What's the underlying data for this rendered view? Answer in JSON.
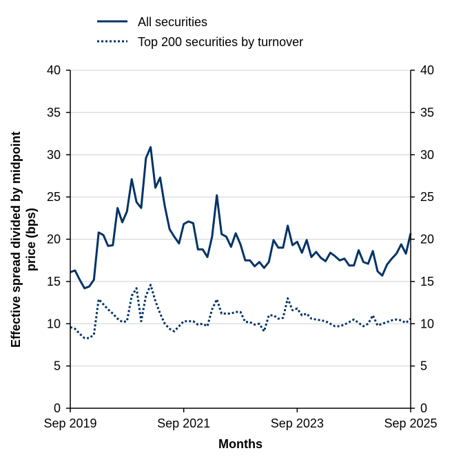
{
  "chart_data": {
    "type": "line",
    "xlabel": "Months",
    "ylabel_line1": "Effective spread divided by midpoint",
    "ylabel_line2": "price (bps)",
    "ylim": [
      0,
      40
    ],
    "yticks": [
      0,
      5,
      10,
      15,
      20,
      25,
      30,
      35,
      40
    ],
    "ytick_labels": [
      "0",
      "5",
      "10",
      "15",
      "20",
      "25",
      "30",
      "35",
      "40"
    ],
    "secondary_y_axis": true,
    "xticks": [
      "Sep 2019",
      "Sep 2021",
      "Sep 2023",
      "Sep 2025"
    ],
    "grid": "horizontal",
    "legend_position": "top",
    "x": [
      "Sep 2019",
      "Oct 2019",
      "Nov 2019",
      "Dec 2019",
      "Jan 2020",
      "Feb 2020",
      "Mar 2020",
      "Apr 2020",
      "May 2020",
      "Jun 2020",
      "Jul 2020",
      "Aug 2020",
      "Sep 2020",
      "Oct 2020",
      "Nov 2020",
      "Dec 2020",
      "Jan 2021",
      "Feb 2021",
      "Mar 2021",
      "Apr 2021",
      "May 2021",
      "Jun 2021",
      "Jul 2021",
      "Aug 2021",
      "Sep 2021",
      "Oct 2021",
      "Nov 2021",
      "Dec 2021",
      "Jan 2022",
      "Feb 2022",
      "Mar 2022",
      "Apr 2022",
      "May 2022",
      "Jun 2022",
      "Jul 2022",
      "Aug 2022",
      "Sep 2022",
      "Oct 2022",
      "Nov 2022",
      "Dec 2022",
      "Jan 2023",
      "Feb 2023",
      "Mar 2023",
      "Apr 2023",
      "May 2023",
      "Jun 2023",
      "Jul 2023",
      "Aug 2023",
      "Sep 2023",
      "Oct 2023",
      "Nov 2023",
      "Dec 2023",
      "Jan 2024",
      "Feb 2024",
      "Mar 2024",
      "Apr 2024",
      "May 2024",
      "Jun 2024",
      "Jul 2024",
      "Aug 2024",
      "Sep 2024",
      "Oct 2024",
      "Nov 2024",
      "Dec 2024",
      "Jan 2025",
      "Feb 2025",
      "Mar 2025",
      "Apr 2025",
      "May 2025",
      "Jun 2025",
      "Jul 2025",
      "Aug 2025",
      "Sep 2025"
    ],
    "series": [
      {
        "name": "All securities",
        "style": "solid",
        "color": "#003366",
        "values": [
          16.1,
          16.3,
          15.2,
          14.2,
          14.4,
          15.2,
          20.8,
          20.5,
          19.2,
          19.3,
          23.7,
          22.0,
          23.3,
          27.1,
          24.4,
          23.7,
          29.6,
          30.9,
          26.1,
          27.3,
          23.9,
          21.2,
          20.3,
          19.5,
          21.8,
          22.1,
          21.9,
          18.8,
          18.8,
          17.9,
          20.3,
          25.2,
          20.6,
          20.3,
          19.1,
          20.7,
          19.4,
          17.5,
          17.5,
          16.8,
          17.3,
          16.6,
          17.3,
          19.9,
          19.0,
          19.0,
          21.6,
          19.3,
          19.7,
          18.4,
          19.9,
          17.9,
          18.5,
          17.8,
          17.4,
          18.4,
          18.0,
          17.5,
          17.7,
          16.9,
          16.9,
          18.7,
          17.3,
          17.1,
          18.6,
          16.2,
          15.7,
          17.0,
          17.7,
          18.3,
          19.4,
          18.3,
          20.7
        ]
      },
      {
        "name": "Top 200 securities by turnover",
        "style": "dotted",
        "color": "#003366",
        "values": [
          9.6,
          9.4,
          8.8,
          8.3,
          8.3,
          8.7,
          12.9,
          12.3,
          11.7,
          11.2,
          10.6,
          10.2,
          10.3,
          13.3,
          14.2,
          10.3,
          13.3,
          14.6,
          12.7,
          11.2,
          10.0,
          9.4,
          9.1,
          9.7,
          10.3,
          10.3,
          10.3,
          9.9,
          10.0,
          9.7,
          11.7,
          12.9,
          11.2,
          11.2,
          11.2,
          11.4,
          11.4,
          10.2,
          10.2,
          9.9,
          10.0,
          9.1,
          11.0,
          11.0,
          10.6,
          10.7,
          13.0,
          11.6,
          11.8,
          11.0,
          11.2,
          10.6,
          10.5,
          10.4,
          10.3,
          10.0,
          9.7,
          9.7,
          9.9,
          10.2,
          10.5,
          10.1,
          9.7,
          10.0,
          11.0,
          9.8,
          10.0,
          10.2,
          10.4,
          10.5,
          10.4,
          10.1,
          10.6
        ]
      }
    ]
  }
}
